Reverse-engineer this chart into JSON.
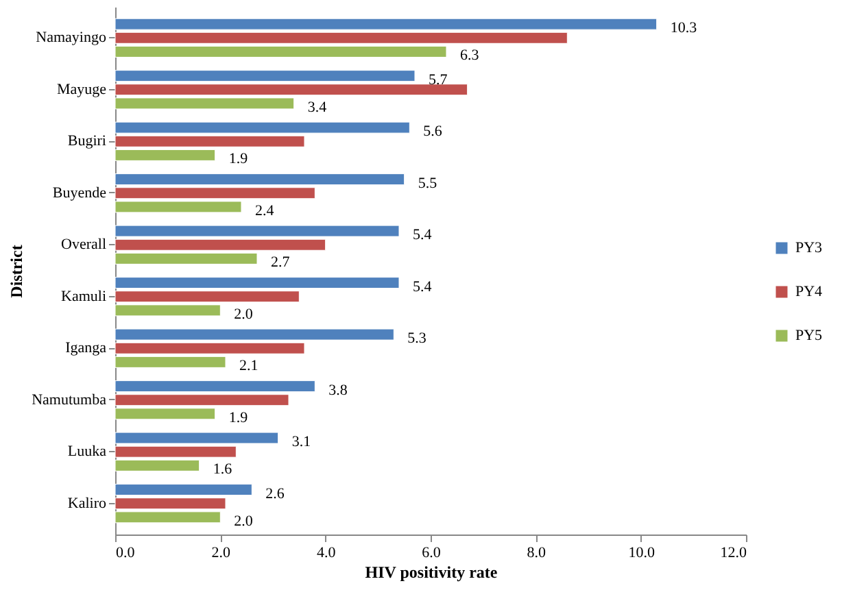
{
  "chart_data": {
    "type": "bar",
    "orientation": "horizontal",
    "xlabel": "HIV positivity rate",
    "ylabel": "District",
    "categories": [
      "Namayingo",
      "Mayuge",
      "Bugiri",
      "Buyende",
      "Overall",
      "Kamuli",
      "Iganga",
      "Namutumba",
      "Luuka",
      "Kaliro"
    ],
    "series": [
      {
        "name": "PY3",
        "color": "#4f81bd",
        "values": [
          10.3,
          5.7,
          5.6,
          5.5,
          5.4,
          5.4,
          5.3,
          3.8,
          3.1,
          2.6
        ],
        "value_labels": [
          "10.3",
          "5.7",
          "5.6",
          "5.5",
          "5.4",
          "5.4",
          "5.3",
          "3.8",
          "3.1",
          "2.6"
        ]
      },
      {
        "name": "PY4",
        "color": "#c0504d",
        "values": [
          8.6,
          6.7,
          3.6,
          3.8,
          4.0,
          3.5,
          3.6,
          3.3,
          2.3,
          2.1
        ]
      },
      {
        "name": "PY5",
        "color": "#9bbb59",
        "values": [
          6.3,
          3.4,
          1.9,
          2.4,
          2.7,
          2.0,
          2.1,
          1.9,
          1.6,
          2.0
        ],
        "value_labels": [
          "6.3",
          "3.4",
          "1.9",
          "2.4",
          "2.7",
          "2.0",
          "2.1",
          "1.9",
          "1.6",
          "2.0"
        ]
      }
    ],
    "xlim": [
      0,
      12
    ],
    "xticks": [
      {
        "value": 0,
        "label": "0.0"
      },
      {
        "value": 2,
        "label": "2.0"
      },
      {
        "value": 4,
        "label": "4.0"
      },
      {
        "value": 6,
        "label": "6.0"
      },
      {
        "value": 8,
        "label": "8.0"
      },
      {
        "value": 10,
        "label": "10.0"
      },
      {
        "value": 12,
        "label": "12.0"
      }
    ],
    "grid": false,
    "legend": "right"
  }
}
